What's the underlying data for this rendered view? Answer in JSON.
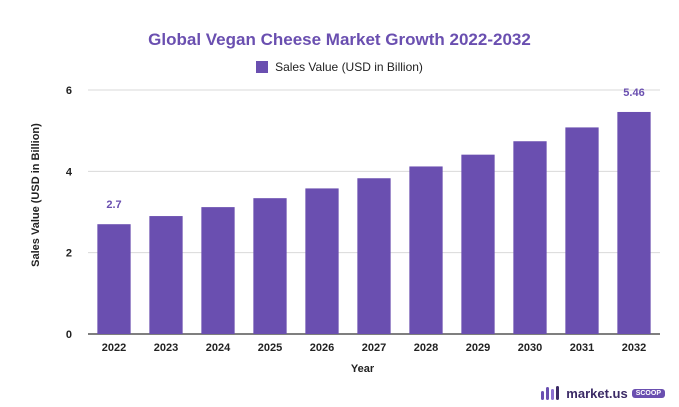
{
  "chart_data": {
    "type": "bar",
    "title": "Global Vegan Cheese Market Growth 2022-2032",
    "xlabel": "Year",
    "ylabel": "Sales Value (USD in Billion)",
    "categories": [
      "2022",
      "2023",
      "2024",
      "2025",
      "2026",
      "2027",
      "2028",
      "2029",
      "2030",
      "2031",
      "2032"
    ],
    "series": [
      {
        "name": "Sales Value (USD in Billion)",
        "values": [
          2.7,
          2.9,
          3.12,
          3.34,
          3.58,
          3.83,
          4.12,
          4.41,
          4.74,
          5.08,
          5.46
        ]
      }
    ],
    "data_labels": [
      {
        "category": "2022",
        "text": "2.7"
      },
      {
        "category": "2032",
        "text": "5.46"
      }
    ],
    "ylim": [
      0,
      6
    ],
    "yticks": [
      0,
      2,
      4,
      6
    ],
    "grid": true,
    "legend_position": "top-center",
    "bar_color": "#6a4fb0",
    "label_color": "#6a4fb0"
  },
  "watermark": {
    "name": "market.us",
    "tag": "SCOOP",
    "icon": "market-us-logo-icon"
  }
}
